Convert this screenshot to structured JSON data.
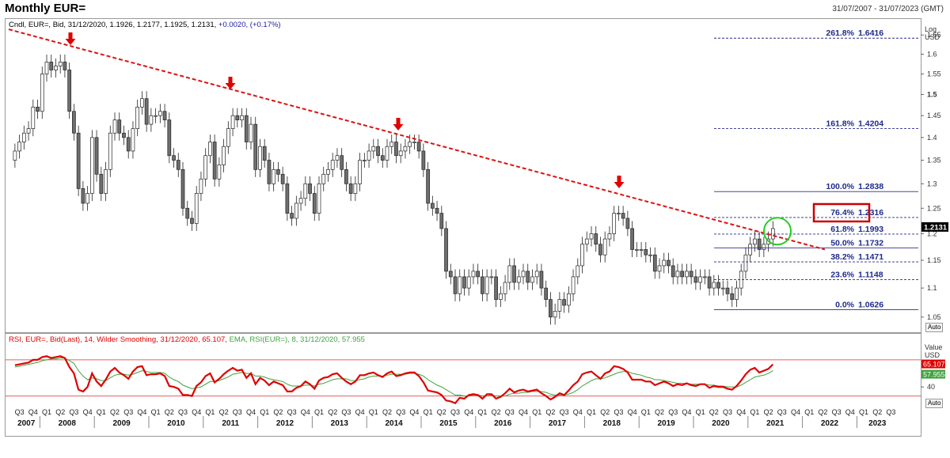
{
  "header": {
    "title": "Monthly EUR=",
    "date_range": "31/07/2007 - 31/07/2023 (GMT)"
  },
  "main_legend": {
    "prefix": "Cndl, EUR=, Bid, 31/12/2020, 1.1926, 1.2177, 1.1925, 1.2131, ",
    "change": "+0.0020, (+0.17%)",
    "change_color": "#1a1aa6"
  },
  "price_axis": {
    "title_line1": "Log",
    "title_line2": "USD",
    "last_value": "1.2131",
    "auto_label": "Auto"
  },
  "rsi_legend": {
    "rsi_text": "RSI, EUR=, Bid(Last), 14, Wilder Smoothing, 31/12/2020, 65.107,",
    "ema_text": "EMA, RSI(EUR=), 8, 31/12/2020, 57.955",
    "rsi_color": "#e00000",
    "ema_color": "#3fa33f"
  },
  "rsi_axis": {
    "title_line1": "Value",
    "title_line2": "USD",
    "tick": "40",
    "rsi_value": "65.107",
    "ema_value": "57.955",
    "auto_label": "Auto"
  },
  "chart_data": {
    "type": "candlestick",
    "y_scale": "log",
    "ylim": [
      1.03,
      1.68
    ],
    "y_ticks": [
      "1.05",
      "1.1",
      "1.15",
      "1.2",
      "1.25",
      "1.3",
      "1.35",
      "1.4",
      "1.45",
      "1.5",
      "1.55",
      "1.6",
      "1.65"
    ],
    "years": [
      "2007",
      "2008",
      "2009",
      "2010",
      "2011",
      "2012",
      "2013",
      "2014",
      "2015",
      "2016",
      "2017",
      "2018",
      "2019",
      "2020",
      "2021",
      "2022",
      "2023"
    ],
    "quarters_first": [
      "Q3",
      "Q4"
    ],
    "quarters_full": [
      "Q1",
      "Q2",
      "Q3",
      "Q4"
    ],
    "quarters_last": [
      "Q1",
      "Q2",
      "Q3"
    ],
    "up_color": "#ffffff",
    "down_color": "#6e6e6e",
    "close_series": [
      1.37,
      1.39,
      1.41,
      1.42,
      1.47,
      1.46,
      1.55,
      1.58,
      1.56,
      1.57,
      1.58,
      1.56,
      1.46,
      1.41,
      1.29,
      1.26,
      1.28,
      1.4,
      1.32,
      1.28,
      1.33,
      1.41,
      1.44,
      1.41,
      1.4,
      1.37,
      1.42,
      1.47,
      1.49,
      1.43,
      1.45,
      1.45,
      1.46,
      1.44,
      1.36,
      1.35,
      1.33,
      1.25,
      1.23,
      1.22,
      1.28,
      1.31,
      1.36,
      1.39,
      1.31,
      1.34,
      1.38,
      1.42,
      1.45,
      1.44,
      1.45,
      1.39,
      1.43,
      1.33,
      1.38,
      1.35,
      1.3,
      1.33,
      1.32,
      1.3,
      1.24,
      1.23,
      1.26,
      1.27,
      1.3,
      1.28,
      1.24,
      1.3,
      1.32,
      1.33,
      1.35,
      1.36,
      1.33,
      1.3,
      1.28,
      1.3,
      1.35,
      1.35,
      1.37,
      1.38,
      1.36,
      1.35,
      1.38,
      1.39,
      1.36,
      1.37,
      1.38,
      1.39,
      1.39,
      1.37,
      1.33,
      1.26,
      1.25,
      1.24,
      1.21,
      1.13,
      1.12,
      1.09,
      1.12,
      1.1,
      1.12,
      1.13,
      1.12,
      1.09,
      1.12,
      1.12,
      1.08,
      1.09,
      1.11,
      1.14,
      1.11,
      1.12,
      1.13,
      1.11,
      1.12,
      1.13,
      1.1,
      1.08,
      1.05,
      1.06,
      1.08,
      1.07,
      1.09,
      1.12,
      1.14,
      1.18,
      1.19,
      1.2,
      1.18,
      1.16,
      1.19,
      1.2,
      1.24,
      1.24,
      1.23,
      1.21,
      1.17,
      1.17,
      1.17,
      1.16,
      1.16,
      1.13,
      1.14,
      1.15,
      1.14,
      1.12,
      1.13,
      1.12,
      1.13,
      1.12,
      1.11,
      1.12,
      1.12,
      1.1,
      1.11,
      1.1,
      1.1,
      1.09,
      1.08,
      1.1,
      1.13,
      1.16,
      1.18,
      1.19,
      1.17,
      1.18,
      1.19,
      1.21
    ]
  },
  "fibonacci": [
    {
      "label": "261.8%",
      "value": "1.6416",
      "level": 1.6416
    },
    {
      "label": "161.8%",
      "value": "1.4204",
      "level": 1.4204
    },
    {
      "label": "100.0%",
      "value": "1.2838",
      "level": 1.2838
    },
    {
      "label": "76.4%",
      "value": "1.2316",
      "level": 1.2316
    },
    {
      "label": "61.8%",
      "value": "1.1993",
      "level": 1.1993
    },
    {
      "label": "50.0%",
      "value": "1.1732",
      "level": 1.1732
    },
    {
      "label": "38.2%",
      "value": "1.1471",
      "level": 1.1471
    },
    {
      "label": "23.6%",
      "value": "1.1148",
      "level": 1.1148
    },
    {
      "label": "0.0%",
      "value": "1.0626",
      "level": 1.0626
    }
  ],
  "annotations": {
    "trendline_color": "#dd1111",
    "arrow_color": "#e00000",
    "highlight_box_color": "#cc0000",
    "circle_color": "#22cc22"
  },
  "rsi_data": {
    "ylim": [
      20,
      90
    ],
    "upper_band": 70,
    "lower_band": 30,
    "rsi_series": [
      64,
      65,
      66,
      67,
      70,
      70,
      73,
      74,
      72,
      73,
      74,
      72,
      62,
      55,
      37,
      35,
      40,
      55,
      46,
      41,
      48,
      57,
      61,
      56,
      53,
      49,
      57,
      62,
      63,
      53,
      54,
      54,
      55,
      52,
      41,
      40,
      38,
      31,
      31,
      30,
      41,
      45,
      52,
      55,
      45,
      49,
      54,
      58,
      61,
      58,
      59,
      50,
      55,
      43,
      50,
      47,
      42,
      46,
      44,
      42,
      35,
      35,
      39,
      41,
      46,
      43,
      38,
      47,
      50,
      51,
      54,
      55,
      50,
      46,
      43,
      46,
      53,
      53,
      55,
      56,
      53,
      51,
      55,
      57,
      52,
      53,
      55,
      56,
      56,
      52,
      45,
      36,
      35,
      34,
      31,
      25,
      24,
      22,
      28,
      27,
      31,
      32,
      31,
      27,
      32,
      32,
      27,
      29,
      33,
      38,
      34,
      36,
      37,
      35,
      36,
      37,
      33,
      30,
      26,
      29,
      33,
      31,
      36,
      42,
      46,
      54,
      56,
      57,
      53,
      49,
      55,
      57,
      63,
      62,
      60,
      56,
      48,
      48,
      48,
      46,
      46,
      42,
      44,
      46,
      44,
      41,
      43,
      42,
      44,
      42,
      41,
      43,
      43,
      39,
      41,
      40,
      40,
      38,
      37,
      41,
      47,
      54,
      59,
      61,
      56,
      58,
      60,
      65
    ],
    "ema_series": [
      62,
      63,
      64,
      65,
      66,
      67,
      69,
      70,
      71,
      71,
      72,
      72,
      69,
      66,
      58,
      52,
      48,
      50,
      49,
      47,
      47,
      50,
      53,
      54,
      54,
      53,
      54,
      56,
      58,
      57,
      56,
      56,
      56,
      55,
      51,
      48,
      46,
      42,
      40,
      38,
      39,
      40,
      43,
      46,
      46,
      47,
      49,
      51,
      54,
      55,
      56,
      55,
      55,
      52,
      52,
      51,
      49,
      48,
      47,
      46,
      43,
      41,
      41,
      41,
      42,
      42,
      41,
      43,
      44,
      46,
      48,
      49,
      49,
      49,
      47,
      47,
      48,
      49,
      51,
      52,
      52,
      52,
      53,
      54,
      54,
      54,
      54,
      55,
      55,
      54,
      52,
      48,
      45,
      42,
      40,
      37,
      34,
      31,
      31,
      30,
      30,
      31,
      31,
      30,
      30,
      31,
      30,
      30,
      30,
      32,
      33,
      33,
      34,
      34,
      35,
      35,
      35,
      34,
      32,
      31,
      31,
      31,
      32,
      34,
      37,
      41,
      44,
      47,
      49,
      49,
      50,
      52,
      54,
      56,
      57,
      57,
      55,
      54,
      53,
      51,
      50,
      48,
      48,
      47,
      46,
      45,
      44,
      44,
      44,
      43,
      43,
      43,
      43,
      42,
      42,
      41,
      41,
      40,
      40,
      40,
      42,
      45,
      48,
      51,
      52,
      53,
      55,
      58
    ]
  }
}
